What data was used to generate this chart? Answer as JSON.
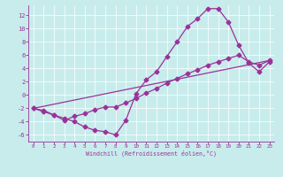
{
  "xlabel": "Windchill (Refroidissement éolien,°C)",
  "bg_color": "#c8ecec",
  "line_color": "#993399",
  "grid_color": "#ffffff",
  "xlim": [
    -0.5,
    23.5
  ],
  "ylim": [
    -7,
    13.5
  ],
  "xticks": [
    0,
    1,
    2,
    3,
    4,
    5,
    6,
    7,
    8,
    9,
    10,
    11,
    12,
    13,
    14,
    15,
    16,
    17,
    18,
    19,
    20,
    21,
    22,
    23
  ],
  "yticks": [
    -6,
    -4,
    -2,
    0,
    2,
    4,
    6,
    8,
    10,
    12
  ],
  "line1_x": [
    0,
    1,
    2,
    3,
    4,
    5,
    6,
    7,
    8,
    9,
    10,
    11,
    12,
    13,
    14,
    15,
    16,
    17,
    18,
    19,
    20,
    21,
    22,
    23
  ],
  "line1_y": [
    -2,
    -2.5,
    -3,
    -3.5,
    -4,
    -4.8,
    -5.3,
    -5.5,
    -6.0,
    -3.8,
    0.2,
    2.3,
    3.5,
    5.8,
    8.0,
    10.3,
    11.5,
    13.0,
    13.0,
    11.0,
    7.5,
    4.8,
    3.5,
    5.0
  ],
  "line2_x": [
    0,
    1,
    2,
    3,
    4,
    5,
    6,
    7,
    8,
    9,
    10,
    11,
    12,
    13,
    14,
    15,
    16,
    17,
    18,
    19,
    20,
    21,
    22,
    23
  ],
  "line2_y": [
    -2,
    -2.3,
    -3,
    -3.8,
    -3.2,
    -2.8,
    -2.2,
    -1.8,
    -1.8,
    -1.2,
    -0.5,
    0.3,
    1.0,
    1.8,
    2.5,
    3.2,
    3.8,
    4.5,
    5.0,
    5.5,
    6.0,
    5.0,
    4.5,
    5.2
  ],
  "line3_x": [
    0,
    23
  ],
  "line3_y": [
    -2,
    5.2
  ]
}
